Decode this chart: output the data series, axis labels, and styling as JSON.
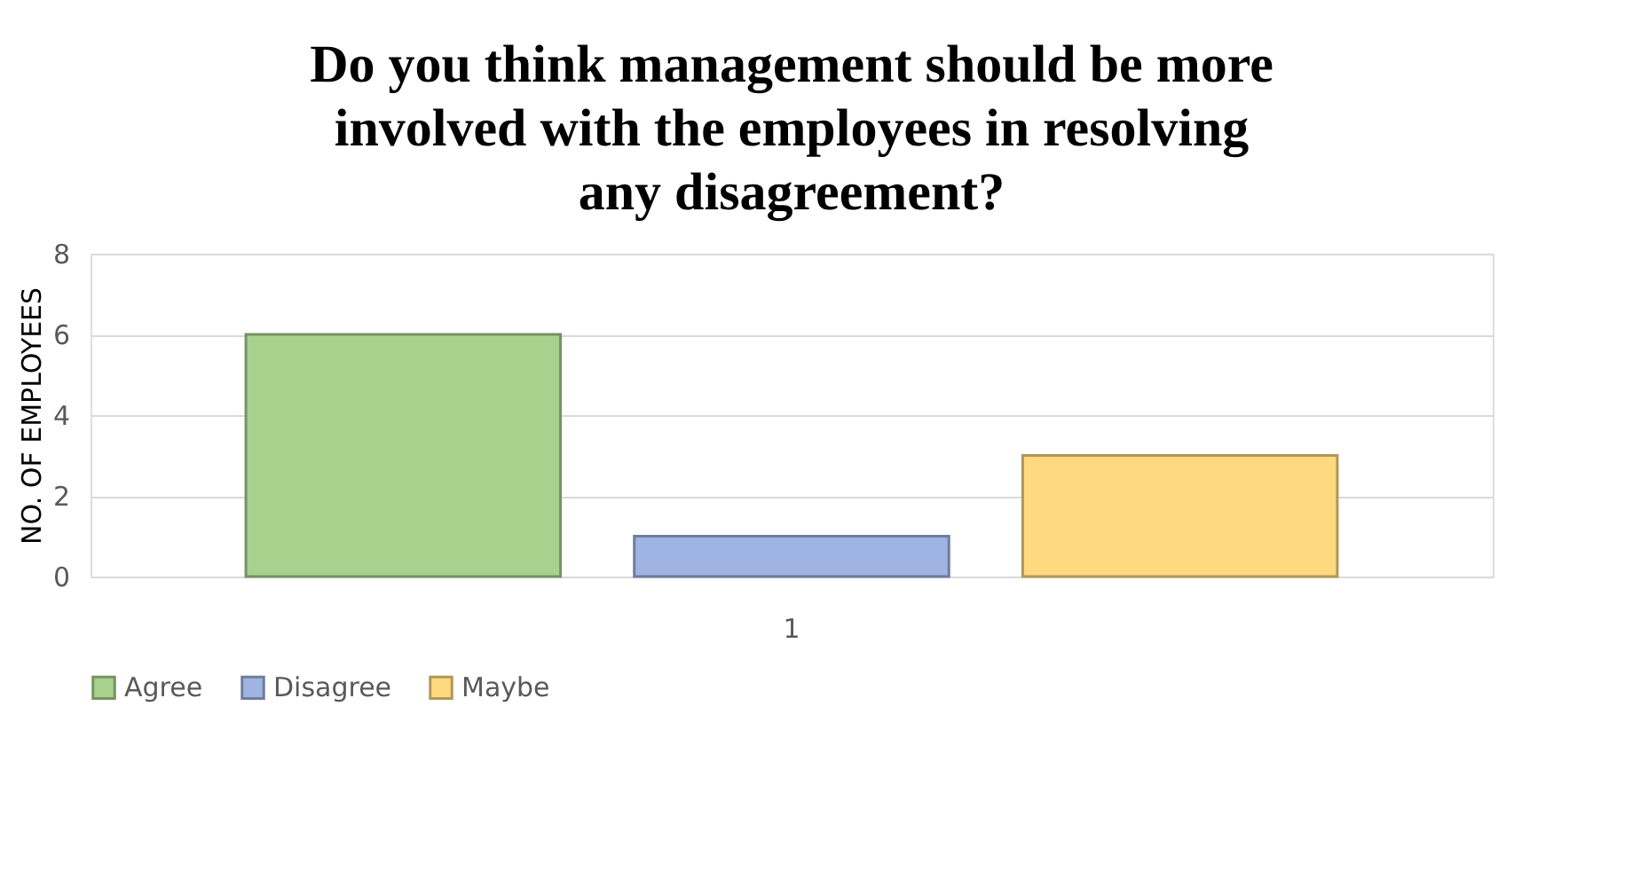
{
  "chart_data": {
    "type": "bar",
    "title": "Do you think management should be more involved with the employees in resolving any disagreement?",
    "ylabel": "NO. OF EMPLOYEES",
    "categories": [
      "1"
    ],
    "series": [
      {
        "name": "Agree",
        "color": "#a9d18e",
        "values": [
          6
        ]
      },
      {
        "name": "Disagree",
        "color": "#9fb4e3",
        "values": [
          1
        ]
      },
      {
        "name": "Maybe",
        "color": "#ffd980",
        "values": [
          3
        ]
      }
    ],
    "ylim": [
      0,
      8
    ],
    "yticks": [
      0,
      2,
      4,
      6,
      8
    ],
    "grid": "y",
    "legend": "bottom"
  }
}
